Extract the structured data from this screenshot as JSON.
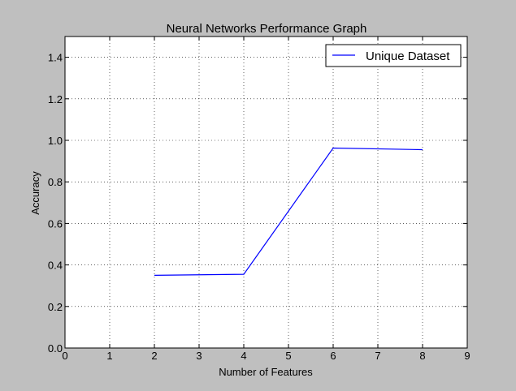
{
  "chart_data": {
    "type": "line",
    "title": "Neural Networks Performance Graph",
    "xlabel": "Number of Features",
    "ylabel": "Accuracy",
    "xlim": [
      0,
      9
    ],
    "ylim": [
      0.0,
      1.5
    ],
    "xticks": [
      0,
      1,
      2,
      3,
      4,
      5,
      6,
      7,
      8,
      9
    ],
    "xtick_labels": [
      "0",
      "1",
      "2",
      "3",
      "4",
      "5",
      "6",
      "7",
      "8",
      "9"
    ],
    "yticks": [
      0.0,
      0.2,
      0.4,
      0.6,
      0.8,
      1.0,
      1.2,
      1.4
    ],
    "ytick_labels": [
      "0.0",
      "0.2",
      "0.4",
      "0.6",
      "0.8",
      "1.0",
      "1.2",
      "1.4"
    ],
    "grid": true,
    "legend_position": "top-right",
    "series": [
      {
        "name": "Unique Dataset",
        "color": "#0000ff",
        "x": [
          2,
          4,
          6,
          8
        ],
        "y": [
          0.35,
          0.355,
          0.963,
          0.955
        ]
      }
    ]
  }
}
